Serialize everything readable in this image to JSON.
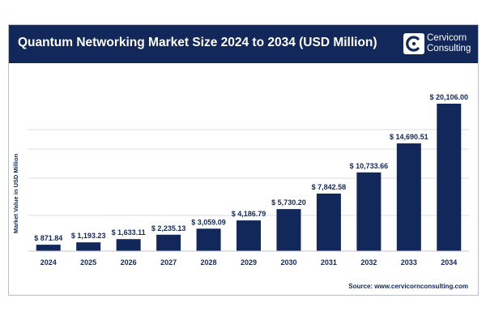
{
  "header": {
    "title": "Quantum Networking Market Size 2024 to 2034 (USD Million)",
    "logo_line1": "Cervicorn",
    "logo_line2": "Consulting"
  },
  "source": "Source: www.cervicornconsulting.com",
  "colors": {
    "header": "#12285a",
    "bar": "#12285a",
    "grid": "#d9dde4",
    "text": "#12285a"
  },
  "chart_data": {
    "type": "bar",
    "title": "Quantum Networking Market Size 2024 to 2034 (USD Million)",
    "ylabel": "Market Value in USD Million",
    "xlabel": "",
    "categories": [
      "2024",
      "2025",
      "2026",
      "2027",
      "2028",
      "2029",
      "2030",
      "2031",
      "2032",
      "2033",
      "2034"
    ],
    "values": [
      871.84,
      1193.23,
      1633.11,
      2235.13,
      3059.09,
      4186.79,
      5730.2,
      7842.58,
      10733.66,
      14690.51,
      20106.0
    ],
    "value_labels": [
      "$ 871.84",
      "$ 1,193.23",
      "$ 1,633.11",
      "$ 2,235.13",
      "$ 3,059.09",
      "$ 4,186.79",
      "$ 5,730.20",
      "$ 7,842.58",
      "$ 10,733.66",
      "$ 14,690.51",
      "$ 20,106.00"
    ],
    "ylim": [
      0,
      20106
    ],
    "grid": true
  }
}
